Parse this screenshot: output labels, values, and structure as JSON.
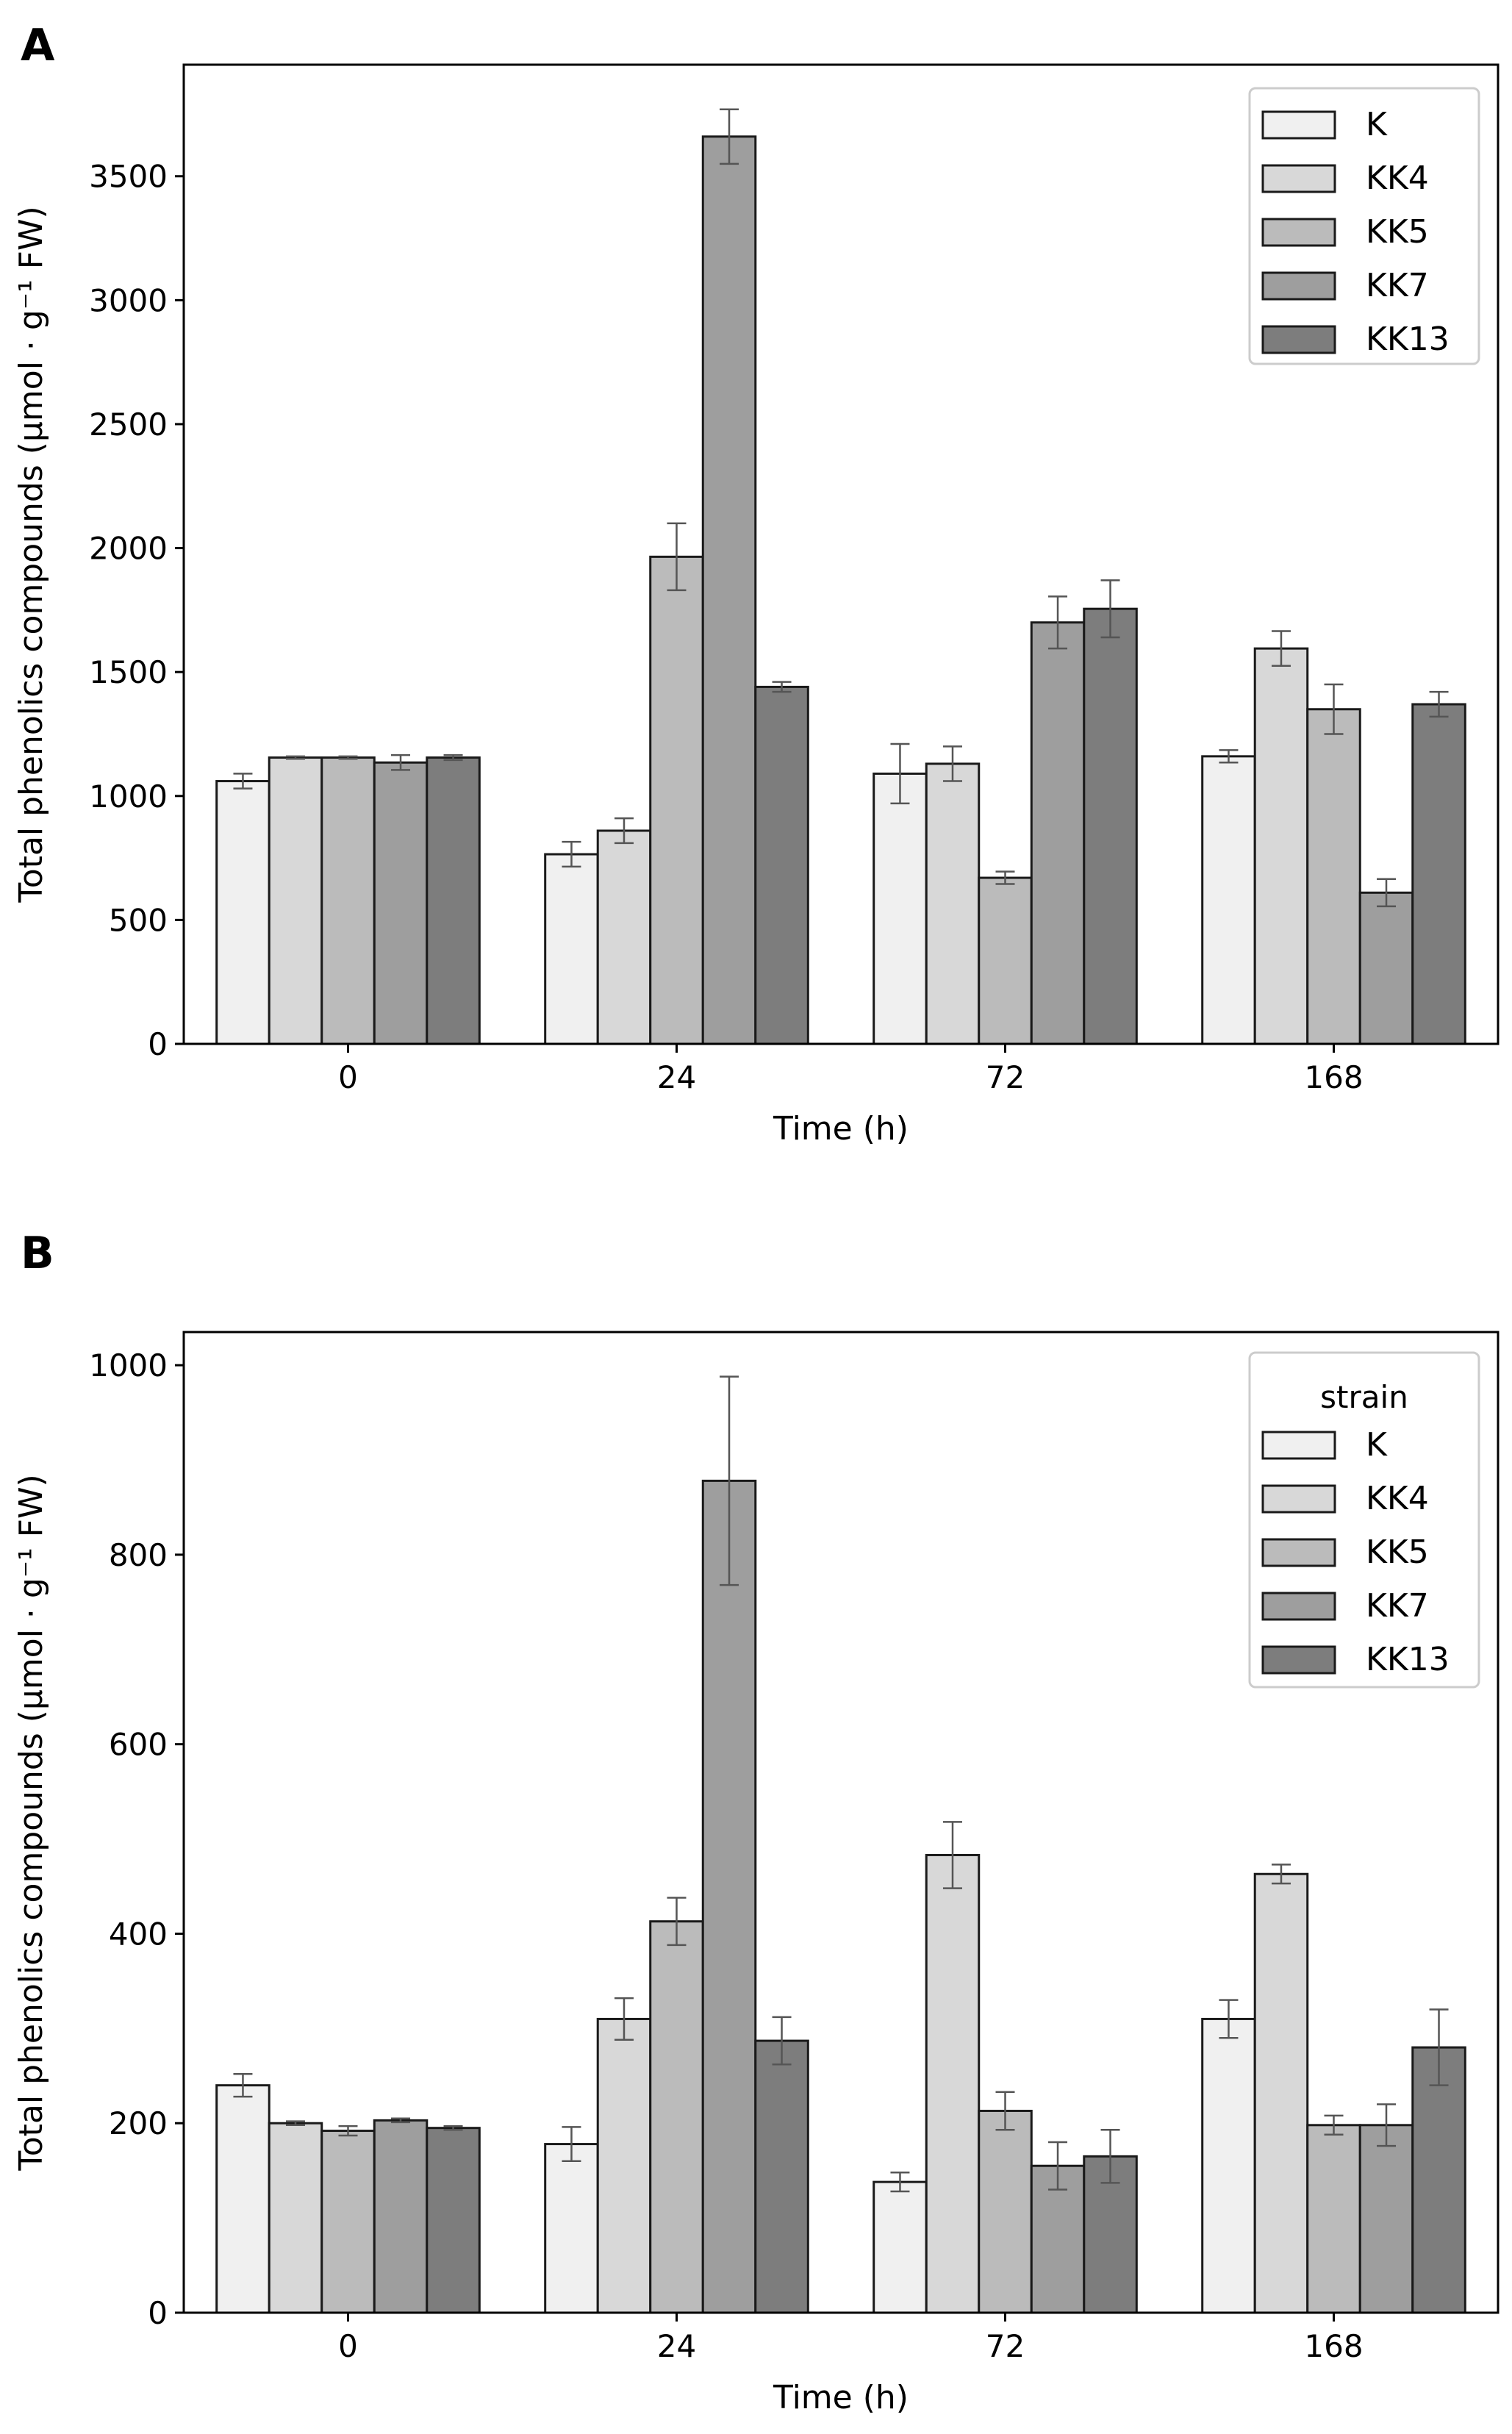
{
  "chart_data": [
    {
      "panel_label": "A",
      "type": "bar",
      "title": "",
      "xlabel": "Time (h)",
      "ylabel": "Total phenolics compounds (µmol · g⁻¹ FW)",
      "categories": [
        "0",
        "24",
        "72",
        "168"
      ],
      "ylim": [
        0,
        3950
      ],
      "yticks": [
        0,
        500,
        1000,
        1500,
        2000,
        2500,
        3000,
        3500
      ],
      "legend_title": "",
      "legend_position": "top-right",
      "series": [
        {
          "name": "K",
          "color": "#f0f0f0",
          "values": [
            1060,
            765,
            1090,
            1160
          ],
          "errors": [
            30,
            50,
            120,
            25
          ]
        },
        {
          "name": "KK4",
          "color": "#d8d8d8",
          "values": [
            1155,
            860,
            1130,
            1595
          ],
          "errors": [
            5,
            50,
            70,
            70
          ]
        },
        {
          "name": "KK5",
          "color": "#bbbbbb",
          "values": [
            1155,
            1965,
            670,
            1350
          ],
          "errors": [
            5,
            135,
            25,
            100
          ]
        },
        {
          "name": "KK7",
          "color": "#9e9e9e",
          "values": [
            1135,
            3660,
            1700,
            610
          ],
          "errors": [
            30,
            110,
            105,
            55
          ]
        },
        {
          "name": "KK13",
          "color": "#7d7d7d",
          "values": [
            1155,
            1440,
            1755,
            1370
          ],
          "errors": [
            10,
            20,
            115,
            50
          ]
        }
      ]
    },
    {
      "panel_label": "B",
      "type": "bar",
      "title": "",
      "xlabel": "Time (h)",
      "ylabel": "Total phenolics compounds (µmol · g⁻¹ FW)",
      "categories": [
        "0",
        "24",
        "72",
        "168"
      ],
      "ylim": [
        0,
        1035
      ],
      "yticks": [
        0,
        200,
        400,
        600,
        800,
        1000
      ],
      "legend_title": "strain",
      "legend_position": "top-right",
      "series": [
        {
          "name": "K",
          "color": "#f0f0f0",
          "values": [
            240,
            178,
            138,
            310
          ],
          "errors": [
            12,
            18,
            10,
            20
          ]
        },
        {
          "name": "KK4",
          "color": "#d8d8d8",
          "values": [
            200,
            310,
            483,
            463
          ],
          "errors": [
            2,
            22,
            35,
            10
          ]
        },
        {
          "name": "KK5",
          "color": "#bbbbbb",
          "values": [
            192,
            413,
            213,
            198
          ],
          "errors": [
            5,
            25,
            20,
            10
          ]
        },
        {
          "name": "KK7",
          "color": "#9e9e9e",
          "values": [
            203,
            878,
            155,
            198
          ],
          "errors": [
            2,
            110,
            25,
            22
          ]
        },
        {
          "name": "KK13",
          "color": "#7d7d7d",
          "values": [
            195,
            287,
            165,
            280
          ],
          "errors": [
            2,
            25,
            28,
            40
          ]
        }
      ]
    }
  ]
}
